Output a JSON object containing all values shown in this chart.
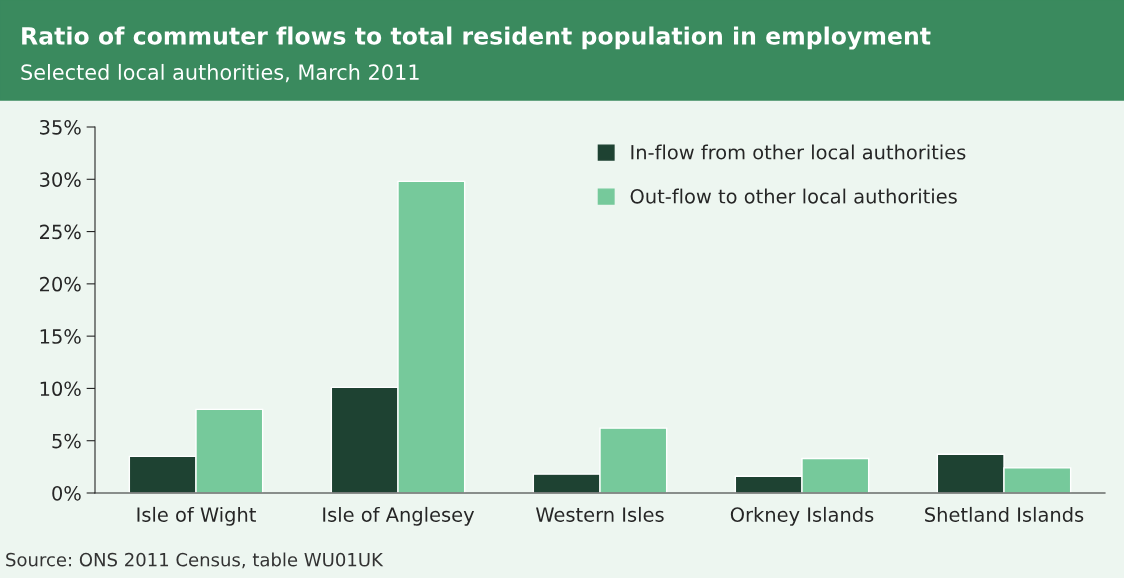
{
  "chart_data": {
    "type": "bar",
    "title": "Ratio of commuter flows to total resident population in employment",
    "subtitle": "Selected local authorities, March 2011",
    "categories": [
      "Isle of Wight",
      "Isle of Anglesey",
      "Western Isles",
      "Orkney Islands",
      "Shetland Islands"
    ],
    "series": [
      {
        "name": "In-flow from other local authorities",
        "color": "#1e4232",
        "values": [
          3.5,
          10.1,
          1.8,
          1.6,
          3.7
        ]
      },
      {
        "name": "Out-flow to other local authorities",
        "color": "#76c99b",
        "values": [
          8.0,
          29.8,
          6.2,
          3.3,
          2.4
        ]
      }
    ],
    "ylim": [
      0,
      35
    ],
    "yticks": [
      {
        "value": 0,
        "label": "0%"
      },
      {
        "value": 5,
        "label": "5%"
      },
      {
        "value": 10,
        "label": "10%"
      },
      {
        "value": 15,
        "label": "15%"
      },
      {
        "value": 20,
        "label": "20%"
      },
      {
        "value": 25,
        "label": "25%"
      },
      {
        "value": 30,
        "label": "30%"
      },
      {
        "value": 35,
        "label": "35%"
      }
    ],
    "legend": "top right",
    "grid": false,
    "annotations": [
      "Source: ONS 2011 Census, table WU01UK"
    ]
  }
}
